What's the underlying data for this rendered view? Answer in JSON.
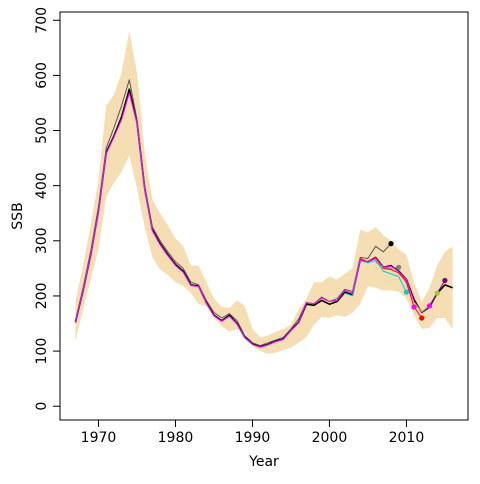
{
  "chart_data": {
    "type": "line",
    "title": "",
    "xlabel": "Year",
    "ylabel": "SSB",
    "xlim": [
      1965,
      2018
    ],
    "ylim": [
      -25,
      715
    ],
    "x_ticks": [
      1970,
      1980,
      1990,
      2000,
      2010
    ],
    "y_ticks": [
      0,
      100,
      200,
      300,
      400,
      500,
      600,
      700
    ],
    "grid": false,
    "legend": "none",
    "band": {
      "color": "#f5deb3",
      "x": [
        1967,
        1968,
        1969,
        1970,
        1971,
        1972,
        1973,
        1974,
        1975,
        1976,
        1977,
        1978,
        1979,
        1980,
        1981,
        1982,
        1983,
        1984,
        1985,
        1986,
        1987,
        1988,
        1989,
        1990,
        1991,
        1992,
        1993,
        1994,
        1995,
        1996,
        1997,
        1998,
        1999,
        2000,
        2001,
        2002,
        2003,
        2004,
        2005,
        2006,
        2007,
        2008,
        2009,
        2010,
        2011,
        2012,
        2013,
        2014,
        2015,
        2016
      ],
      "lower": [
        118,
        175,
        230,
        285,
        380,
        405,
        425,
        455,
        395,
        325,
        270,
        248,
        238,
        225,
        218,
        205,
        185,
        182,
        160,
        145,
        135,
        140,
        135,
        110,
        100,
        95,
        97,
        102,
        106,
        115,
        125,
        148,
        162,
        160,
        165,
        162,
        170,
        185,
        218,
        215,
        210,
        210,
        208,
        195,
        165,
        140,
        142,
        160,
        160,
        140
      ],
      "upper": [
        190,
        255,
        330,
        410,
        545,
        565,
        605,
        680,
        605,
        460,
        375,
        350,
        328,
        305,
        290,
        255,
        255,
        225,
        195,
        180,
        178,
        192,
        182,
        140,
        125,
        128,
        135,
        140,
        148,
        175,
        195,
        225,
        225,
        235,
        230,
        240,
        250,
        320,
        315,
        325,
        310,
        300,
        285,
        275,
        225,
        190,
        215,
        255,
        280,
        290
      ]
    },
    "series": [
      {
        "color": "#000000",
        "x": [
          1967,
          1968,
          1969,
          1970,
          1971,
          1972,
          1973,
          1974,
          1975,
          1976,
          1977,
          1978,
          1979,
          1980,
          1981,
          1982,
          1983,
          1984,
          1985,
          1986,
          1987,
          1988,
          1989,
          1990,
          1991,
          1992,
          1993,
          1994,
          1995,
          1996,
          1997,
          1998,
          1999,
          2000,
          2001,
          2002,
          2003,
          2004,
          2005,
          2006,
          2007,
          2008,
          2009,
          2010,
          2011,
          2012,
          2013,
          2014,
          2015,
          2016
        ],
        "values": [
          152,
          210,
          275,
          355,
          460,
          490,
          525,
          575,
          515,
          395,
          320,
          295,
          275,
          257,
          245,
          220,
          218,
          188,
          165,
          155,
          165,
          150,
          125,
          113,
          108,
          112,
          118,
          122,
          138,
          152,
          185,
          183,
          192,
          185,
          190,
          207,
          202,
          265,
          262,
          270,
          252,
          255,
          245,
          230,
          193,
          170,
          180,
          205,
          220,
          215
        ]
      },
      {
        "color": "#555555",
        "x": [
          1967,
          1968,
          1969,
          1970,
          1971,
          1972,
          1973,
          1974,
          1975,
          1976,
          1977,
          1978,
          1979,
          1980,
          1981,
          1982,
          1983,
          1984,
          1985,
          1986,
          1987,
          1988,
          1989,
          1990,
          1991,
          1992,
          1993,
          1994,
          1995,
          1996,
          1997,
          1998,
          1999,
          2000,
          2001,
          2002,
          2003,
          2004,
          2005,
          2006,
          2007,
          2008
        ],
        "values": [
          155,
          215,
          282,
          362,
          468,
          505,
          545,
          592,
          520,
          400,
          325,
          300,
          280,
          262,
          250,
          225,
          220,
          192,
          170,
          160,
          168,
          155,
          128,
          115,
          110,
          115,
          120,
          125,
          140,
          158,
          188,
          186,
          198,
          190,
          195,
          212,
          208,
          270,
          268,
          290,
          280,
          295
        ]
      },
      {
        "color": "#00ced1",
        "x": [
          2002,
          2003,
          2004,
          2005,
          2006,
          2007,
          2008,
          2009,
          2010
        ],
        "values": [
          205,
          200,
          265,
          260,
          265,
          245,
          240,
          235,
          207
        ]
      },
      {
        "color": "#ff0000",
        "x": [
          2004,
          2005,
          2006,
          2007,
          2008,
          2009,
          2010,
          2011,
          2012
        ],
        "values": [
          268,
          262,
          270,
          250,
          248,
          242,
          225,
          180,
          160
        ]
      },
      {
        "color": "#ff00ff",
        "x": [
          1967,
          1968,
          1969,
          1970,
          1971,
          1972,
          1973,
          1974,
          1975,
          1976,
          1977,
          1978,
          1979,
          1980,
          1981,
          1982,
          1983,
          1984,
          1985,
          1986,
          1987,
          1988,
          1989,
          1990,
          1991,
          1992,
          1993,
          1994,
          1995,
          1996,
          1997,
          1998,
          1999,
          2000,
          2001,
          2002,
          2003,
          2004,
          2005,
          2006,
          2007,
          2008,
          2009,
          2010,
          2011,
          2012,
          2013
        ],
        "values": [
          152,
          210,
          274,
          352,
          458,
          488,
          520,
          568,
          512,
          392,
          318,
          293,
          273,
          255,
          243,
          219,
          217,
          187,
          164,
          154,
          163,
          149,
          124,
          112,
          107,
          111,
          117,
          121,
          137,
          151,
          188,
          186,
          196,
          190,
          192,
          210,
          205,
          265,
          262,
          268,
          252,
          254,
          244,
          230,
          190,
          170,
          182
        ]
      },
      {
        "color": "#808080",
        "x": [
          2006,
          2007,
          2008,
          2009
        ],
        "values": [
          262,
          252,
          250,
          252
        ]
      },
      {
        "color": "#9acd32",
        "x": [
          2011,
          2012,
          2013,
          2014
        ],
        "values": [
          188,
          172,
          182,
          205
        ]
      },
      {
        "color": "#800080",
        "x": [
          2013,
          2014,
          2015
        ],
        "values": [
          182,
          205,
          228
        ]
      }
    ],
    "endpoints": [
      {
        "year": 2008,
        "value": 295,
        "color": "#000000"
      },
      {
        "year": 2009,
        "value": 252,
        "color": "#808080"
      },
      {
        "year": 2010,
        "value": 207,
        "color": "#00ced1"
      },
      {
        "year": 2011,
        "value": 180,
        "color": "#ff00ff"
      },
      {
        "year": 2012,
        "value": 160,
        "color": "#ff0000"
      },
      {
        "year": 2013,
        "value": 182,
        "color": "#ff00ff"
      },
      {
        "year": 2014,
        "value": 205,
        "color": "#9acd32"
      },
      {
        "year": 2015,
        "value": 228,
        "color": "#800080"
      }
    ]
  }
}
